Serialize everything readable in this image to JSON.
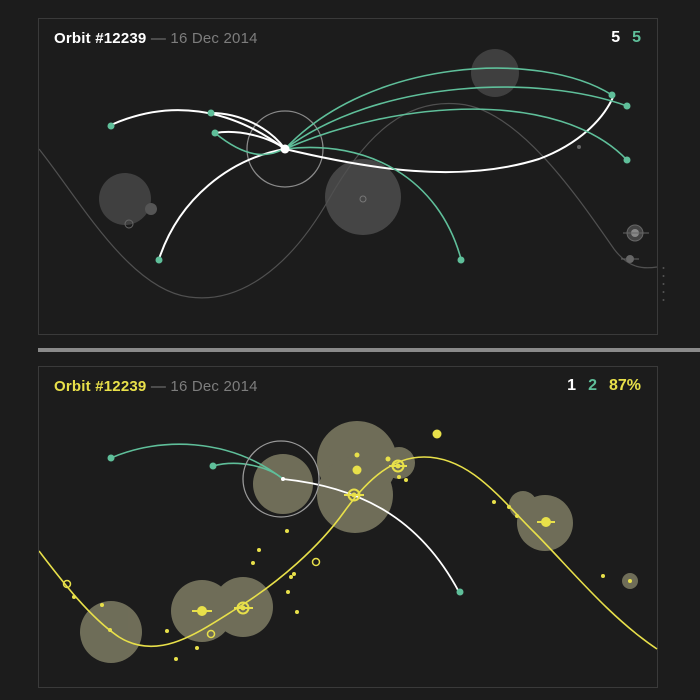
{
  "top": {
    "title": "Orbit #12239",
    "separator": "—",
    "date": "16 Dec 2014",
    "counts": [
      {
        "value": "5",
        "color": "#ffffff"
      },
      {
        "value": "5",
        "color": "#5fbf9a"
      }
    ]
  },
  "bottom": {
    "title": "Orbit #12239",
    "separator": "—",
    "date": "16 Dec 2014",
    "counts": [
      {
        "value": "1",
        "color": "#ffffff"
      },
      {
        "value": "2",
        "color": "#5fbf9a"
      },
      {
        "value": "87%",
        "color": "#e8e04a"
      }
    ]
  },
  "colors": {
    "white": "#ffffff",
    "green": "#5fbf9a",
    "yellow": "#e8e04a",
    "bubble": "#b3b08a",
    "grid": "#3a3a3a",
    "muted": "#7d7d7d"
  }
}
